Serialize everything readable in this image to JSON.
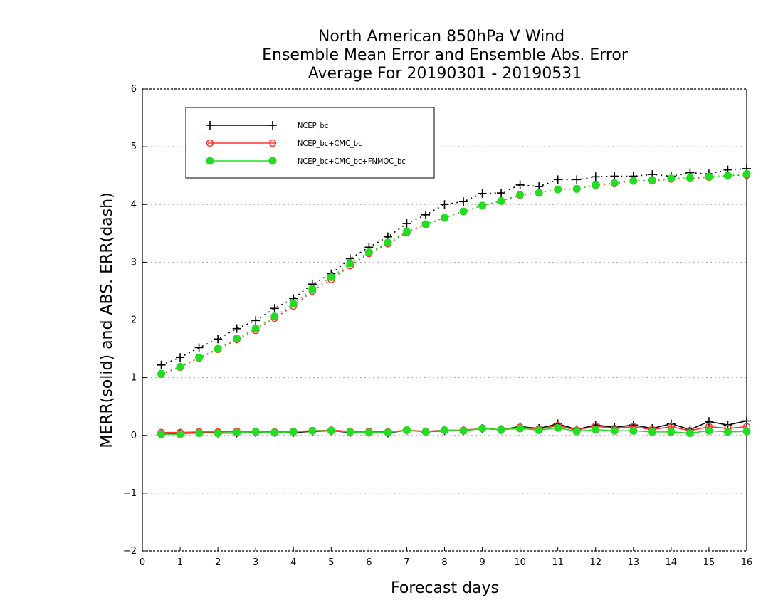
{
  "chart_data": {
    "type": "line",
    "title": [
      "North American 850hPa V Wind",
      "Ensemble Mean Error and Ensemble Abs. Error",
      "Average For 20190301 - 20190531"
    ],
    "xlabel": "Forecast days",
    "ylabel": "MERR(solid) and ABS. ERR(dash)",
    "xlim": [
      0,
      16
    ],
    "ylim": [
      -2,
      6
    ],
    "xticks": [
      0,
      1,
      2,
      3,
      4,
      5,
      6,
      7,
      8,
      9,
      10,
      11,
      12,
      13,
      14,
      15,
      16
    ],
    "yticks": [
      -2,
      -1,
      0,
      1,
      2,
      3,
      4,
      5,
      6
    ],
    "grid": "horizontal dotted",
    "legend_position": "top-left",
    "x": [
      0.5,
      1,
      1.5,
      2,
      2.5,
      3,
      3.5,
      4,
      4.5,
      5,
      5.5,
      6,
      6.5,
      7,
      7.5,
      8,
      8.5,
      9,
      9.5,
      10,
      10.5,
      11,
      11.5,
      12,
      12.5,
      13,
      13.5,
      14,
      14.5,
      15,
      15.5,
      16
    ],
    "series": [
      {
        "name": "NCEP_bc",
        "color": "#000000",
        "marker": "plus",
        "abs_error": [
          1.22,
          1.35,
          1.52,
          1.67,
          1.85,
          1.99,
          2.2,
          2.37,
          2.62,
          2.8,
          3.06,
          3.26,
          3.44,
          3.67,
          3.82,
          4.0,
          4.05,
          4.19,
          4.2,
          4.34,
          4.31,
          4.43,
          4.43,
          4.48,
          4.49,
          4.49,
          4.52,
          4.49,
          4.55,
          4.53,
          4.6,
          4.62
        ],
        "mean_error": [
          0.02,
          0.03,
          0.05,
          0.04,
          0.04,
          0.05,
          0.05,
          0.05,
          0.07,
          0.08,
          0.05,
          0.05,
          0.04,
          0.09,
          0.06,
          0.08,
          0.08,
          0.12,
          0.1,
          0.15,
          0.12,
          0.2,
          0.1,
          0.18,
          0.14,
          0.18,
          0.12,
          0.2,
          0.1,
          0.24,
          0.18,
          0.25
        ]
      },
      {
        "name": "NCEP_bc+CMC_bc",
        "color": "#ff3333",
        "marker": "open-circle",
        "abs_error": [
          1.06,
          1.18,
          1.34,
          1.49,
          1.66,
          1.82,
          2.03,
          2.24,
          2.5,
          2.7,
          2.94,
          3.15,
          3.32,
          3.51,
          3.65,
          3.77,
          3.88,
          3.98,
          4.06,
          4.16,
          4.2,
          4.26,
          4.27,
          4.33,
          4.36,
          4.41,
          4.41,
          4.44,
          4.45,
          4.47,
          4.5,
          4.51
        ],
        "mean_error": [
          0.05,
          0.05,
          0.06,
          0.06,
          0.07,
          0.07,
          0.06,
          0.07,
          0.08,
          0.09,
          0.07,
          0.07,
          0.06,
          0.09,
          0.07,
          0.09,
          0.09,
          0.12,
          0.1,
          0.14,
          0.11,
          0.17,
          0.09,
          0.16,
          0.12,
          0.15,
          0.1,
          0.15,
          0.08,
          0.15,
          0.12,
          0.15
        ]
      },
      {
        "name": "NCEP_bc+CMC_bc+FNMOC_bc",
        "color": "#22dd22",
        "marker": "filled-circle",
        "abs_error": [
          1.07,
          1.19,
          1.35,
          1.5,
          1.68,
          1.85,
          2.06,
          2.28,
          2.54,
          2.74,
          2.98,
          3.17,
          3.34,
          3.53,
          3.66,
          3.77,
          3.88,
          3.98,
          4.06,
          4.17,
          4.2,
          4.26,
          4.27,
          4.34,
          4.37,
          4.41,
          4.42,
          4.45,
          4.46,
          4.48,
          4.5,
          4.53
        ],
        "mean_error": [
          0.02,
          0.02,
          0.04,
          0.04,
          0.05,
          0.06,
          0.05,
          0.06,
          0.08,
          0.08,
          0.06,
          0.05,
          0.05,
          0.09,
          0.06,
          0.09,
          0.08,
          0.12,
          0.1,
          0.12,
          0.09,
          0.13,
          0.07,
          0.1,
          0.08,
          0.08,
          0.06,
          0.06,
          0.04,
          0.08,
          0.06,
          0.07
        ]
      }
    ]
  }
}
